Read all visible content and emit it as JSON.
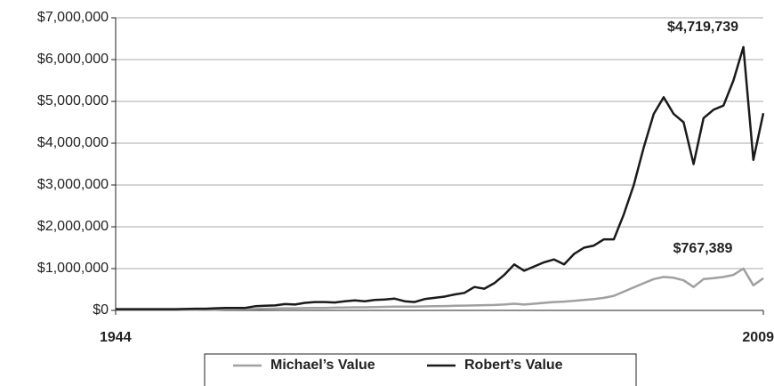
{
  "chart_data": {
    "type": "line",
    "x": [
      1944,
      1945,
      1946,
      1947,
      1948,
      1949,
      1950,
      1951,
      1952,
      1953,
      1954,
      1955,
      1956,
      1957,
      1958,
      1959,
      1960,
      1961,
      1962,
      1963,
      1964,
      1965,
      1966,
      1967,
      1968,
      1969,
      1970,
      1971,
      1972,
      1973,
      1974,
      1975,
      1976,
      1977,
      1978,
      1979,
      1980,
      1981,
      1982,
      1983,
      1984,
      1985,
      1986,
      1987,
      1988,
      1989,
      1990,
      1991,
      1992,
      1993,
      1994,
      1995,
      1996,
      1997,
      1998,
      1999,
      2000,
      2001,
      2002,
      2003,
      2004,
      2005,
      2006,
      2007,
      2008,
      2009
    ],
    "series": [
      {
        "name": "Michael’s Value",
        "color": "#a0a0a0",
        "values": [
          10000,
          10000,
          10000,
          10000,
          10000,
          10000,
          10000,
          15000,
          15000,
          20000,
          20000,
          25000,
          25000,
          30000,
          35000,
          40000,
          45000,
          50000,
          50000,
          55000,
          60000,
          60000,
          65000,
          70000,
          75000,
          75000,
          80000,
          85000,
          90000,
          90000,
          90000,
          95000,
          100000,
          105000,
          110000,
          115000,
          120000,
          125000,
          130000,
          140000,
          160000,
          140000,
          160000,
          180000,
          200000,
          210000,
          230000,
          250000,
          270000,
          300000,
          350000,
          450000,
          550000,
          650000,
          750000,
          800000,
          780000,
          720000,
          560000,
          750000,
          770000,
          800000,
          850000,
          1000000,
          600000,
          767389
        ]
      },
      {
        "name": "Robert’s Value",
        "color": "#1a1a1a",
        "values": [
          30000,
          30000,
          30000,
          30000,
          30000,
          30000,
          30000,
          35000,
          40000,
          40000,
          50000,
          60000,
          60000,
          60000,
          100000,
          110000,
          120000,
          150000,
          140000,
          180000,
          200000,
          200000,
          190000,
          220000,
          240000,
          220000,
          250000,
          260000,
          280000,
          220000,
          200000,
          270000,
          300000,
          330000,
          380000,
          420000,
          560000,
          520000,
          650000,
          850000,
          1100000,
          950000,
          1050000,
          1150000,
          1220000,
          1100000,
          1350000,
          1500000,
          1550000,
          1700000,
          1700000,
          2300000,
          3000000,
          3900000,
          4700000,
          5100000,
          4700000,
          4500000,
          3500000,
          4600000,
          4800000,
          4900000,
          5500000,
          6300000,
          3600000,
          4719739
        ]
      }
    ],
    "xlim": [
      1944,
      2009
    ],
    "xticks": [
      1944,
      2009
    ],
    "ylim": [
      0,
      7000000
    ],
    "yticks": [
      {
        "value": 0,
        "label": "$0"
      },
      {
        "value": 1000000,
        "label": "$1,000,000"
      },
      {
        "value": 2000000,
        "label": "$2,000,000"
      },
      {
        "value": 3000000,
        "label": "$3,000,000"
      },
      {
        "value": 4000000,
        "label": "$4,000,000"
      },
      {
        "value": 5000000,
        "label": "$5,000,000"
      },
      {
        "value": 6000000,
        "label": "$6,000,000"
      },
      {
        "value": 7000000,
        "label": "$7,000,000"
      }
    ],
    "grid": true,
    "annotations": [
      {
        "text": "$4,719,739",
        "series": 1
      },
      {
        "text": "$767,389",
        "series": 0
      }
    ]
  }
}
